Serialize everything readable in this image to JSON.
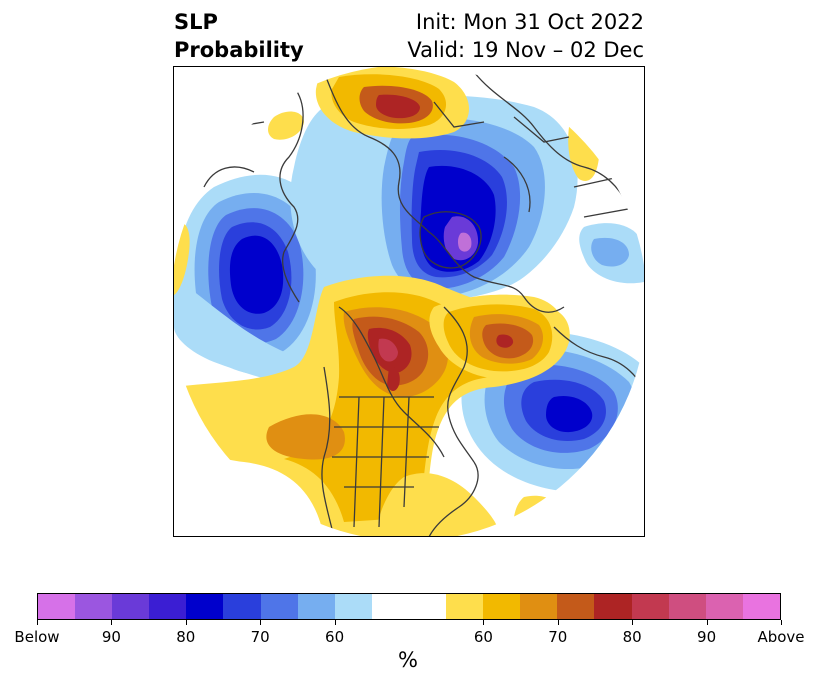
{
  "title": {
    "left_line1": "SLP",
    "left_line2": "Probability",
    "right_line1": "Init: Mon 31 Oct 2022",
    "right_line2": "Valid: 19 Nov – 02 Dec"
  },
  "colorbar": {
    "unit_label": "%",
    "segments": [
      "#d671e8",
      "#9b56e0",
      "#6a3ad8",
      "#3b1ed3",
      "#0000cc",
      "#2a3fdc",
      "#4f75e8",
      "#76aef0",
      "#abdcf8",
      "#ffffff",
      "#ffffff",
      "#fede4c",
      "#f2b900",
      "#e08f12",
      "#c45a1a",
      "#ad2424",
      "#c23950",
      "#cf4e80",
      "#db62b0",
      "#e973e0"
    ],
    "tick_labels": [
      "Below",
      "90",
      "80",
      "70",
      "60",
      "60",
      "70",
      "80",
      "90",
      "Above"
    ]
  },
  "map": {
    "projection": "north-polar-stereographic",
    "colors": {
      "blue_light": "#abdcf8",
      "blue_mid": "#76aef0",
      "blue_3": "#4f75e8",
      "blue_4": "#2a3fdc",
      "blue_dark": "#0000cc",
      "purple": "#6a3ad8",
      "yellow": "#fede4c",
      "orange": "#f2b900",
      "dark_orange": "#e08f12",
      "rust": "#c45a1a",
      "red": "#ad2424",
      "pink_red": "#c23950",
      "coastline": "#3a3a3a"
    }
  }
}
